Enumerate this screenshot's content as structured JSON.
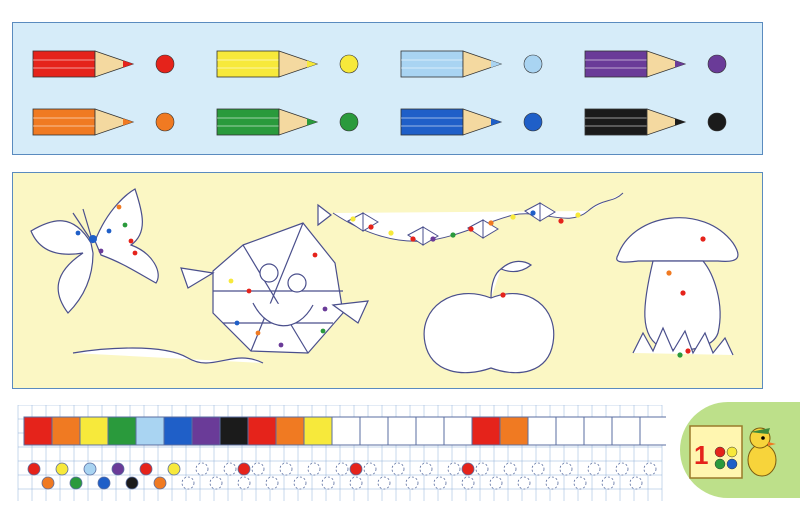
{
  "pencils": [
    {
      "name": "red",
      "body": "#e5231b",
      "dot": "#e5231b"
    },
    {
      "name": "yellow",
      "body": "#f7e93b",
      "dot": "#f7e93b"
    },
    {
      "name": "light-blue",
      "body": "#a9d4f2",
      "dot": "#a9d4f2"
    },
    {
      "name": "violet",
      "body": "#6a3b98",
      "dot": "#6a3b98"
    },
    {
      "name": "orange",
      "body": "#f07a22",
      "dot": "#f07a22"
    },
    {
      "name": "green",
      "body": "#2a9a3c",
      "dot": "#2a9a3c"
    },
    {
      "name": "blue",
      "body": "#1f5fc8",
      "dot": "#1f5fc8"
    },
    {
      "name": "black",
      "body": "#1b1b1b",
      "dot": "#1b1b1b"
    }
  ],
  "grid": {
    "top_row_colors": [
      "#e5231b",
      "#f07a22",
      "#f7e93b",
      "#2a9a3c",
      "#a9d4f2",
      "#1f5fc8",
      "#6a3b98",
      "#1b1b1b",
      "#e5231b",
      "#f07a22",
      "#f7e93b",
      "",
      "",
      "",
      "",
      "",
      "#e5231b",
      "#f07a22",
      "",
      "",
      "",
      "",
      ""
    ],
    "bottom_beads_filled": [
      "#e5231b",
      "#f07a22",
      "#f7e93b",
      "#2a9a3c",
      "#a9d4f2",
      "#1f5fc8",
      "#6a3b98",
      "#1b1b1b",
      "#e5231b",
      "#f07a22",
      "#f7e93b"
    ],
    "bottom_marked_red": [
      8,
      12,
      16
    ]
  },
  "badge": {
    "digit": "1",
    "dot_colors": [
      "#e5231b",
      "#f7e93b",
      "#2a9a3c",
      "#1f5fc8"
    ]
  }
}
